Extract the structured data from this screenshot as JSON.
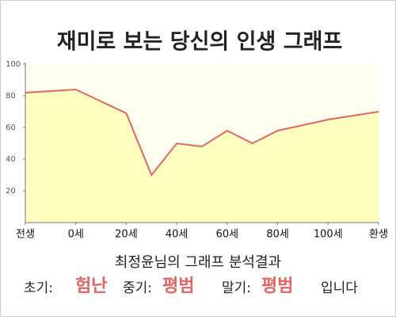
{
  "chart_data": {
    "type": "area",
    "title": "재미로 보는 당신의 인생 그래프",
    "x": [
      -20,
      0,
      20,
      30,
      40,
      50,
      60,
      70,
      80,
      100,
      120
    ],
    "values": [
      82,
      84,
      69,
      30,
      50,
      48,
      58,
      50,
      58,
      65,
      70
    ],
    "color": "#e06666",
    "fill": "#ffffc0",
    "xlim": [
      -20,
      120
    ],
    "xticks": [
      {
        "value": -20,
        "label": "전생"
      },
      {
        "value": 0,
        "label": "0세"
      },
      {
        "value": 20,
        "label": "20세"
      },
      {
        "value": 40,
        "label": "40세"
      },
      {
        "value": 60,
        "label": "60세"
      },
      {
        "value": 80,
        "label": "80세"
      },
      {
        "value": 100,
        "label": "100세"
      },
      {
        "value": 120,
        "label": "환생"
      }
    ],
    "ylim": [
      0,
      100
    ],
    "yticks": [
      20,
      40,
      60,
      80,
      100
    ]
  },
  "analysis": {
    "heading": "최정윤님의 그래프 분석결과",
    "items": [
      {
        "label": "초기:",
        "result": "험난"
      },
      {
        "label": "중기:",
        "result": "평범"
      },
      {
        "label": "말기:",
        "result": "평범"
      }
    ],
    "ending": "입니다"
  }
}
